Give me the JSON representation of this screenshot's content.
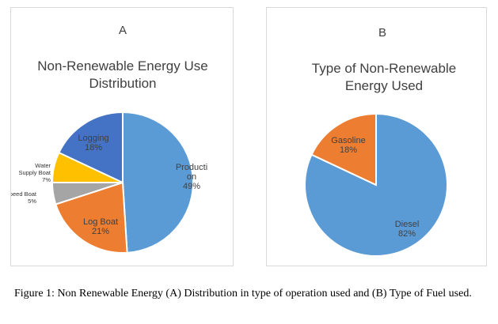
{
  "chart_data": [
    {
      "type": "pie",
      "panel_letter": "A",
      "title_lines": [
        "Non-Renewable Energy Use",
        "Distribution"
      ],
      "slices": [
        {
          "name": "Production",
          "value": 49,
          "pct_label": "49%",
          "color": "#5b9bd5",
          "label_lines": [
            "Producti",
            "on"
          ]
        },
        {
          "name": "Log Boat",
          "value": 21,
          "pct_label": "21%",
          "color": "#ed7d31",
          "label_lines": [
            "Log Boat"
          ]
        },
        {
          "name": "Speed Boat",
          "value": 5,
          "pct_label": "5%",
          "color": "#a5a5a5",
          "label_lines": [
            "Speed Boat"
          ]
        },
        {
          "name": "Water Supply Boat",
          "value": 7,
          "pct_label": "7%",
          "color": "#ffc000",
          "label_lines": [
            "Water",
            "Supply Boat"
          ]
        },
        {
          "name": "Logging",
          "value": 18,
          "pct_label": "18%",
          "color": "#4472c4",
          "label_lines": [
            "Logging"
          ]
        }
      ]
    },
    {
      "type": "pie",
      "panel_letter": "B",
      "title_lines": [
        "Type of Non-Renewable",
        "Energy Used"
      ],
      "slices": [
        {
          "name": "Diesel",
          "value": 82,
          "pct_label": "82%",
          "color": "#5b9bd5",
          "label_lines": [
            "Diesel"
          ]
        },
        {
          "name": "Gasoline",
          "value": 18,
          "pct_label": "18%",
          "color": "#ed7d31",
          "label_lines": [
            "Gasoline"
          ]
        }
      ]
    }
  ],
  "caption": "Figure 1: Non Renewable Energy (A) Distribution in type of operation used and (B) Type of Fuel used."
}
